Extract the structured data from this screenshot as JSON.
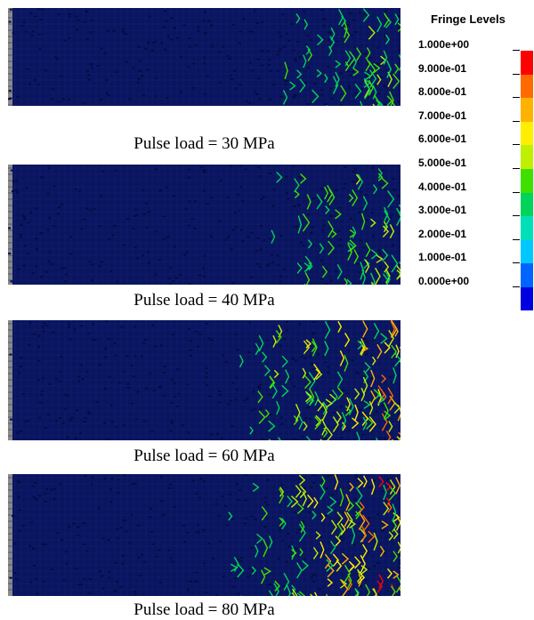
{
  "legend": {
    "title": "Fringe Levels",
    "levels": [
      "1.000e+00",
      "9.000e-01",
      "8.000e-01",
      "7.000e-01",
      "6.000e-01",
      "5.000e-01",
      "4.000e-01",
      "3.000e-01",
      "2.000e-01",
      "1.000e-01",
      "0.000e+00"
    ],
    "colors": [
      "#ff0000",
      "#ff6a00",
      "#ffb300",
      "#ffee00",
      "#bff000",
      "#3fe000",
      "#00d45a",
      "#00e0b8",
      "#00c8ff",
      "#0064ff",
      "#0000e0"
    ]
  },
  "panels": [
    {
      "caption": "Pulse load = 30 MPa",
      "intensity": 0.25
    },
    {
      "caption": "Pulse load = 40 MPa",
      "intensity": 0.3
    },
    {
      "caption": "Pulse load = 60 MPa",
      "intensity": 0.75
    },
    {
      "caption": "Pulse load = 80 MPa",
      "intensity": 0.9
    }
  ],
  "colors": {
    "background": "#0a1560",
    "edge": "#8a8a8a"
  }
}
